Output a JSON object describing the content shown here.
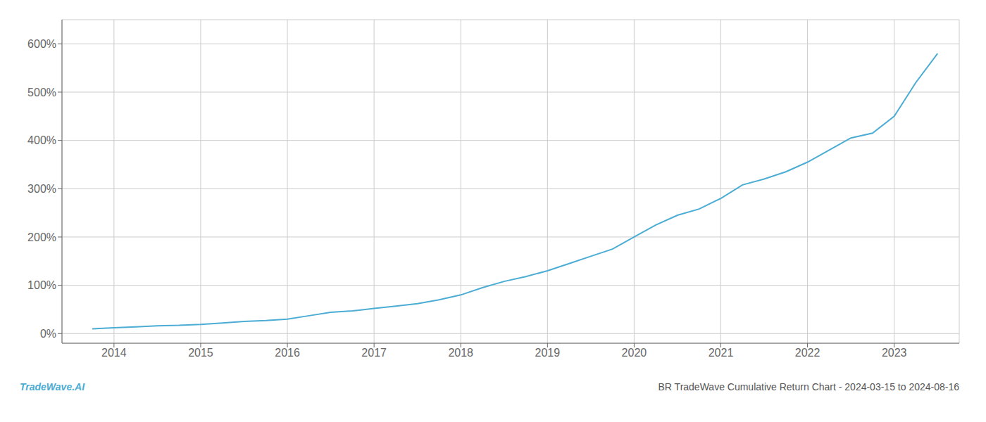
{
  "chart_data": {
    "type": "line",
    "title": "BR TradeWave Cumulative Return Chart - 2024-03-15 to 2024-08-16",
    "annotations": [
      "TradeWave.AI"
    ],
    "x": [
      2013.75,
      2014.0,
      2014.25,
      2014.5,
      2014.75,
      2015.0,
      2015.25,
      2015.5,
      2015.75,
      2016.0,
      2016.25,
      2016.5,
      2016.75,
      2017.0,
      2017.25,
      2017.5,
      2017.75,
      2018.0,
      2018.25,
      2018.5,
      2018.75,
      2019.0,
      2019.25,
      2019.5,
      2019.75,
      2020.0,
      2020.25,
      2020.5,
      2020.75,
      2021.0,
      2021.25,
      2021.5,
      2021.75,
      2022.0,
      2022.25,
      2022.5,
      2022.75,
      2023.0,
      2023.25,
      2023.5
    ],
    "values": [
      10,
      12,
      14,
      16,
      17,
      19,
      22,
      25,
      27,
      30,
      37,
      44,
      47,
      52,
      57,
      62,
      70,
      80,
      95,
      108,
      118,
      130,
      145,
      160,
      175,
      200,
      225,
      245,
      258,
      280,
      308,
      320,
      335,
      355,
      380,
      405,
      415,
      450,
      520,
      580
    ],
    "color": "#4bacd4",
    "xlim": [
      2013.4,
      2023.75
    ],
    "xticks": [
      2014,
      2015,
      2016,
      2017,
      2018,
      2019,
      2020,
      2021,
      2022,
      2023
    ],
    "ylim": [
      -20,
      650
    ],
    "yticks": [
      {
        "value": 0,
        "label": "0%"
      },
      {
        "value": 100,
        "label": "100%"
      },
      {
        "value": 200,
        "label": "200%"
      },
      {
        "value": 300,
        "label": "300%"
      },
      {
        "value": 400,
        "label": "400%"
      },
      {
        "value": 500,
        "label": "500%"
      },
      {
        "value": 600,
        "label": "600%"
      }
    ],
    "grid": true
  }
}
